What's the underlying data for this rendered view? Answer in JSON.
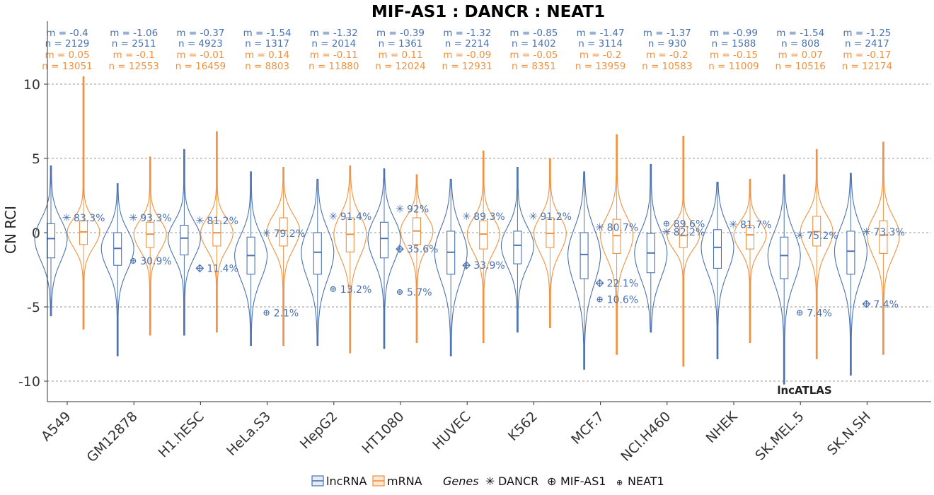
{
  "chart_data": {
    "type": "violin",
    "title": "MIF-AS1 : DANCR : NEAT1",
    "ylabel": "CN RCI",
    "ylim": [
      -11.2,
      13.9
    ],
    "yticks": [
      10,
      5,
      0,
      -5,
      -10
    ],
    "ytick_labels": [
      "10",
      "5",
      "0",
      "-5",
      "-10"
    ],
    "grid": "horizontal dashed",
    "watermark": "lncATLAS",
    "colors": {
      "lncRNA": "#4a72b0",
      "mRNA": "#f0913f"
    },
    "legend": {
      "series": [
        "lncRNA",
        "mRNA"
      ],
      "genes_title": "Genes",
      "genes": [
        {
          "symbol": "✳",
          "name": "DANCR"
        },
        {
          "symbol": "⊕",
          "name": "MIF-AS1"
        },
        {
          "symbol": "⊕",
          "name": "NEAT1"
        }
      ]
    },
    "cells": [
      {
        "name": "A549",
        "lnc": {
          "m_label": "m = -0.4",
          "n_label": "n = 2129",
          "median": -0.4,
          "q1": -1.7,
          "q3": 0.6,
          "wlo": -5.6,
          "whi": 4.5
        },
        "mrna": {
          "m_label": "m = 0.05",
          "n_label": "n = 13051",
          "median": 0.05,
          "q1": -0.8,
          "q3": 0.8,
          "wlo": -6.5,
          "whi": 10.5
        },
        "genes": [
          {
            "gene": "DANCR",
            "y": 1.0,
            "label": "83.3%"
          }
        ]
      },
      {
        "name": "GM12878",
        "lnc": {
          "m_label": "m = -1.06",
          "n_label": "n = 2511",
          "median": -1.06,
          "q1": -2.2,
          "q3": 0.0,
          "wlo": -8.3,
          "whi": 3.3
        },
        "mrna": {
          "m_label": "m = -0.1",
          "n_label": "n = 12553",
          "median": -0.1,
          "q1": -1.0,
          "q3": 0.7,
          "wlo": -6.9,
          "whi": 5.1
        },
        "genes": [
          {
            "gene": "DANCR",
            "y": 1.0,
            "label": "93.3%"
          },
          {
            "gene": "NEAT1",
            "y": -1.9,
            "label": "30.9%"
          }
        ]
      },
      {
        "name": "H1.hESC",
        "lnc": {
          "m_label": "m = -0.37",
          "n_label": "n = 4923",
          "median": -0.37,
          "q1": -1.5,
          "q3": 0.5,
          "wlo": -6.9,
          "whi": 5.6
        },
        "mrna": {
          "m_label": "m = -0.01",
          "n_label": "n = 16459",
          "median": -0.01,
          "q1": -0.9,
          "q3": 0.8,
          "wlo": -6.7,
          "whi": 6.8
        },
        "genes": [
          {
            "gene": "DANCR",
            "y": 0.8,
            "label": "81.2%"
          },
          {
            "gene": "MIF-AS1",
            "y": -2.4,
            "label": "11.4%"
          }
        ]
      },
      {
        "name": "HeLa.S3",
        "lnc": {
          "m_label": "m = -1.54",
          "n_label": "n = 1317",
          "median": -1.54,
          "q1": -2.8,
          "q3": -0.3,
          "wlo": -7.6,
          "whi": 4.1
        },
        "mrna": {
          "m_label": "m = 0.14",
          "n_label": "n = 8803",
          "median": 0.14,
          "q1": -0.9,
          "q3": 1.0,
          "wlo": -7.6,
          "whi": 4.4
        },
        "genes": [
          {
            "gene": "DANCR",
            "y": -0.05,
            "label": "79.2%"
          },
          {
            "gene": "NEAT1",
            "y": -5.4,
            "label": "2.1%"
          }
        ]
      },
      {
        "name": "HepG2",
        "lnc": {
          "m_label": "m = -1.32",
          "n_label": "n = 2014",
          "median": -1.32,
          "q1": -2.8,
          "q3": 0.0,
          "wlo": -7.6,
          "whi": 3.6
        },
        "mrna": {
          "m_label": "m = -0.11",
          "n_label": "n = 11880",
          "median": -0.11,
          "q1": -1.3,
          "q3": 1.0,
          "wlo": -8.1,
          "whi": 4.5
        },
        "genes": [
          {
            "gene": "DANCR",
            "y": 1.1,
            "label": "91.4%"
          },
          {
            "gene": "NEAT1",
            "y": -3.8,
            "label": "13.2%"
          }
        ]
      },
      {
        "name": "HT1080",
        "lnc": {
          "m_label": "m = -0.39",
          "n_label": "n = 1361",
          "median": -0.39,
          "q1": -1.7,
          "q3": 0.7,
          "wlo": -7.8,
          "whi": 4.3
        },
        "mrna": {
          "m_label": "m = 0.11",
          "n_label": "n = 12024",
          "median": 0.11,
          "q1": -0.8,
          "q3": 1.0,
          "wlo": -7.4,
          "whi": 3.9
        },
        "genes": [
          {
            "gene": "DANCR",
            "y": 1.6,
            "label": "92%"
          },
          {
            "gene": "MIF-AS1",
            "y": -1.1,
            "label": "35.6%"
          },
          {
            "gene": "NEAT1",
            "y": -4.0,
            "label": "5.7%"
          }
        ]
      },
      {
        "name": "HUVEC",
        "lnc": {
          "m_label": "m = -1.32",
          "n_label": "n = 2214",
          "median": -1.32,
          "q1": -2.8,
          "q3": 0.1,
          "wlo": -8.3,
          "whi": 3.6
        },
        "mrna": {
          "m_label": "m = -0.09",
          "n_label": "n = 12931",
          "median": -0.09,
          "q1": -1.1,
          "q3": 0.8,
          "wlo": -7.4,
          "whi": 5.5
        },
        "genes": [
          {
            "gene": "DANCR",
            "y": 1.1,
            "label": "89.3%"
          },
          {
            "gene": "MIF-AS1",
            "y": -2.2,
            "label": "33.9%"
          }
        ]
      },
      {
        "name": "K562",
        "lnc": {
          "m_label": "m = -0.85",
          "n_label": "n = 1402",
          "median": -0.85,
          "q1": -2.1,
          "q3": 0.1,
          "wlo": -6.7,
          "whi": 4.4
        },
        "mrna": {
          "m_label": "m = -0.05",
          "n_label": "n = 8351",
          "median": -0.05,
          "q1": -1.0,
          "q3": 1.0,
          "wlo": -6.4,
          "whi": 5.0
        },
        "genes": [
          {
            "gene": "DANCR",
            "y": 1.1,
            "label": "91.2%"
          }
        ]
      },
      {
        "name": "MCF.7",
        "lnc": {
          "m_label": "m = -1.47",
          "n_label": "n = 3114",
          "median": -1.47,
          "q1": -3.1,
          "q3": 0.0,
          "wlo": -9.2,
          "whi": 4.1
        },
        "mrna": {
          "m_label": "m = -0.2",
          "n_label": "n = 13959",
          "median": -0.2,
          "q1": -1.4,
          "q3": 0.9,
          "wlo": -8.2,
          "whi": 6.6
        },
        "genes": [
          {
            "gene": "DANCR",
            "y": 0.35,
            "label": "80.7%"
          },
          {
            "gene": "MIF-AS1",
            "y": -3.4,
            "label": "22.1%"
          },
          {
            "gene": "NEAT1",
            "y": -4.5,
            "label": "10.6%"
          }
        ]
      },
      {
        "name": "NCI.H460",
        "lnc": {
          "m_label": "m = -1.37",
          "n_label": "n = 930",
          "median": -1.37,
          "q1": -2.7,
          "q3": -0.05,
          "wlo": -6.7,
          "whi": 4.6
        },
        "mrna": {
          "m_label": "m = -0.2",
          "n_label": "n = 10583",
          "median": -0.2,
          "q1": -1.0,
          "q3": 0.4,
          "wlo": -9.0,
          "whi": 6.5
        },
        "genes": [
          {
            "gene": "NEAT1",
            "y": 0.6,
            "label": "89.6%"
          },
          {
            "gene": "DANCR",
            "y": 0.05,
            "label": "82.2%"
          }
        ]
      },
      {
        "name": "NHEK",
        "lnc": {
          "m_label": "m = -0.99",
          "n_label": "n = 1588",
          "median": -0.99,
          "q1": -2.4,
          "q3": 0.2,
          "wlo": -8.5,
          "whi": 3.4
        },
        "mrna": {
          "m_label": "m = -0.15",
          "n_label": "n = 11009",
          "median": -0.15,
          "q1": -1.1,
          "q3": 0.5,
          "wlo": -7.4,
          "whi": 3.6
        },
        "genes": [
          {
            "gene": "DANCR",
            "y": 0.55,
            "label": "81.7%"
          }
        ]
      },
      {
        "name": "SK.MEL.5",
        "lnc": {
          "m_label": "m = -1.54",
          "n_label": "n = 808",
          "median": -1.54,
          "q1": -3.1,
          "q3": -0.3,
          "wlo": -10.2,
          "whi": 3.9
        },
        "mrna": {
          "m_label": "m = 0.07",
          "n_label": "n = 10516",
          "median": 0.07,
          "q1": -0.9,
          "q3": 1.1,
          "wlo": -8.5,
          "whi": 5.6
        },
        "genes": [
          {
            "gene": "DANCR",
            "y": -0.2,
            "label": "75.2%"
          },
          {
            "gene": "NEAT1",
            "y": -5.4,
            "label": "7.4%"
          }
        ]
      },
      {
        "name": "SK.N.SH",
        "lnc": {
          "m_label": "m = -1.25",
          "n_label": "n = 2417",
          "median": -1.25,
          "q1": -2.8,
          "q3": 0.1,
          "wlo": -9.6,
          "whi": 4.0
        },
        "mrna": {
          "m_label": "m = -0.17",
          "n_label": "n = 12174",
          "median": -0.17,
          "q1": -1.4,
          "q3": 0.8,
          "wlo": -8.2,
          "whi": 6.1
        },
        "genes": [
          {
            "gene": "DANCR",
            "y": 0.05,
            "label": "73.3%"
          },
          {
            "gene": "MIF-AS1",
            "y": -4.8,
            "label": "7.4%"
          }
        ]
      }
    ]
  }
}
